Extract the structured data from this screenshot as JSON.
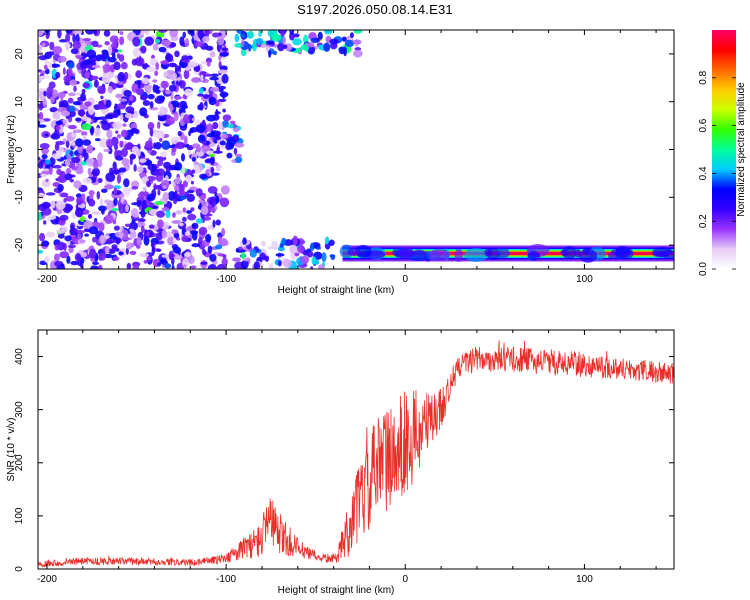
{
  "title": "S197.2026.050.08.14.E31",
  "chart_data": [
    {
      "type": "heatmap",
      "name": "spectrogram",
      "xlabel": "Height of straight line (km)",
      "ylabel": "Frequency (Hz)",
      "xlim": [
        -205,
        150
      ],
      "ylim": [
        -25,
        25
      ],
      "xticks": [
        -200,
        -100,
        0,
        100
      ],
      "yticks": [
        -20,
        -10,
        0,
        10,
        20
      ],
      "colorbar": {
        "label": "Normalized spectral amplitude",
        "range": [
          0,
          1
        ],
        "ticks": [
          0.0,
          0.2,
          0.4,
          0.6,
          0.8
        ],
        "colors": [
          "#ffffff",
          "#e6ccf5",
          "#9933ff",
          "#3300ff",
          "#0000ff",
          "#00ccff",
          "#00ff99",
          "#33ff00",
          "#ccff00",
          "#ffcc00",
          "#ff6600",
          "#ff0000",
          "#ff0066"
        ]
      },
      "features": [
        {
          "label": "scattered noise",
          "x_range": [
            -205,
            -100
          ],
          "y_range": [
            -25,
            25
          ],
          "amplitude": 0.25
        },
        {
          "label": "band near 0 Hz",
          "x_range": [
            -105,
            -92
          ],
          "y_range": [
            -3,
            7
          ],
          "amplitude": 0.35
        },
        {
          "label": "upper signal",
          "x_range": [
            -95,
            -25
          ],
          "y_range": [
            20,
            25
          ],
          "amplitude": 0.4
        },
        {
          "label": "lower signal",
          "x_range": [
            -95,
            -40
          ],
          "y_range": [
            -25,
            -19
          ],
          "amplitude": 0.35
        },
        {
          "label": "signal line",
          "x_range": [
            -35,
            150
          ],
          "y_range": [
            -22.5,
            -21
          ],
          "amplitude": 1.0
        }
      ]
    },
    {
      "type": "line",
      "name": "snr",
      "xlabel": "Height of straight line (km)",
      "ylabel": "SNR (10 * v/v)",
      "xlim": [
        -205,
        150
      ],
      "ylim": [
        0,
        450
      ],
      "xticks": [
        -200,
        -100,
        0,
        100
      ],
      "yticks": [
        0,
        100,
        200,
        300,
        400
      ],
      "color": "#e8302a",
      "series": [
        {
          "name": "SNR",
          "x": [
            -205,
            -180,
            -150,
            -120,
            -100,
            -90,
            -80,
            -75,
            -70,
            -65,
            -55,
            -45,
            -38,
            -35,
            -30,
            -25,
            -20,
            -15,
            -10,
            -5,
            0,
            5,
            10,
            15,
            20,
            25,
            30,
            40,
            60,
            80,
            100,
            120,
            140,
            150
          ],
          "values": [
            10,
            15,
            14,
            12,
            20,
            40,
            55,
            90,
            65,
            50,
            30,
            20,
            20,
            50,
            90,
            130,
            160,
            190,
            210,
            220,
            240,
            250,
            265,
            280,
            305,
            340,
            385,
            395,
            395,
            390,
            385,
            378,
            370,
            368
          ],
          "spread": [
            10,
            12,
            12,
            10,
            15,
            35,
            60,
            90,
            70,
            55,
            20,
            15,
            15,
            60,
            110,
            130,
            160,
            170,
            180,
            170,
            160,
            150,
            120,
            90,
            70,
            50,
            40,
            40,
            40,
            40,
            40,
            35,
            35,
            35
          ]
        }
      ]
    }
  ]
}
